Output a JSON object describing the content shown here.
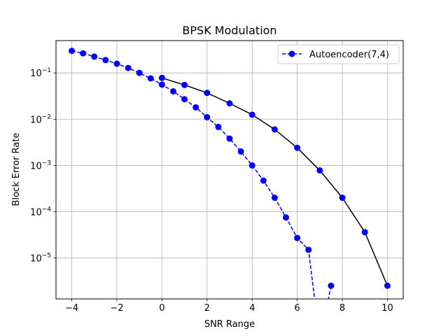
{
  "chart_data": {
    "type": "line",
    "title": "BPSK Modulation",
    "xlabel": "SNR Range",
    "ylabel": "Block Error Rate",
    "xlim": [
      -4.7,
      10.7
    ],
    "ylim": [
      1.3e-06,
      0.5
    ],
    "yscale": "log",
    "grid": true,
    "legend": {
      "placement": "top-right"
    },
    "x_ticks": [
      {
        "value": -4,
        "label": "−4"
      },
      {
        "value": -2,
        "label": "−2"
      },
      {
        "value": 0,
        "label": "0"
      },
      {
        "value": 2,
        "label": "2"
      },
      {
        "value": 4,
        "label": "4"
      },
      {
        "value": 6,
        "label": "6"
      },
      {
        "value": 8,
        "label": "8"
      },
      {
        "value": 10,
        "label": "10"
      }
    ],
    "y_ticks": [
      {
        "value": 0.1,
        "base": "10",
        "exp": "−1"
      },
      {
        "value": 0.01,
        "base": "10",
        "exp": "−2"
      },
      {
        "value": 0.001,
        "base": "10",
        "exp": "−3"
      },
      {
        "value": 0.0001,
        "base": "10",
        "exp": "−4"
      },
      {
        "value": 1e-05,
        "base": "10",
        "exp": "−5"
      }
    ],
    "series": [
      {
        "name": "",
        "color": "#000000",
        "line_style": "solid",
        "marker_color": "#0000ff",
        "in_legend": false,
        "x": [
          0,
          1,
          2,
          3,
          4,
          5,
          6,
          7,
          8,
          9,
          10
        ],
        "y": [
          0.078,
          0.055,
          0.037,
          0.022,
          0.0125,
          0.006,
          0.0024,
          0.00078,
          0.0002,
          3.6e-05,
          2.5e-06
        ]
      },
      {
        "name": "Autoencoder(7,4)",
        "color": "#0000ff",
        "line_style": "dashed",
        "marker_color": "#0000ff",
        "in_legend": true,
        "x": [
          -4,
          -3.5,
          -3,
          -2.5,
          -2,
          -1.5,
          -1,
          -0.5,
          0,
          0.5,
          1,
          1.5,
          2,
          2.5,
          3,
          3.5,
          4,
          4.5,
          5,
          5.5,
          6,
          6.5,
          7,
          7.5
        ],
        "y": [
          0.3,
          0.265,
          0.225,
          0.19,
          0.158,
          0.128,
          0.1,
          0.076,
          0.056,
          0.04,
          0.027,
          0.018,
          0.011,
          0.0068,
          0.0038,
          0.002,
          0.001,
          0.00047,
          0.0002,
          7.5e-05,
          2.7e-05,
          1.5e-05,
          0,
          2.5e-06
        ]
      }
    ]
  }
}
